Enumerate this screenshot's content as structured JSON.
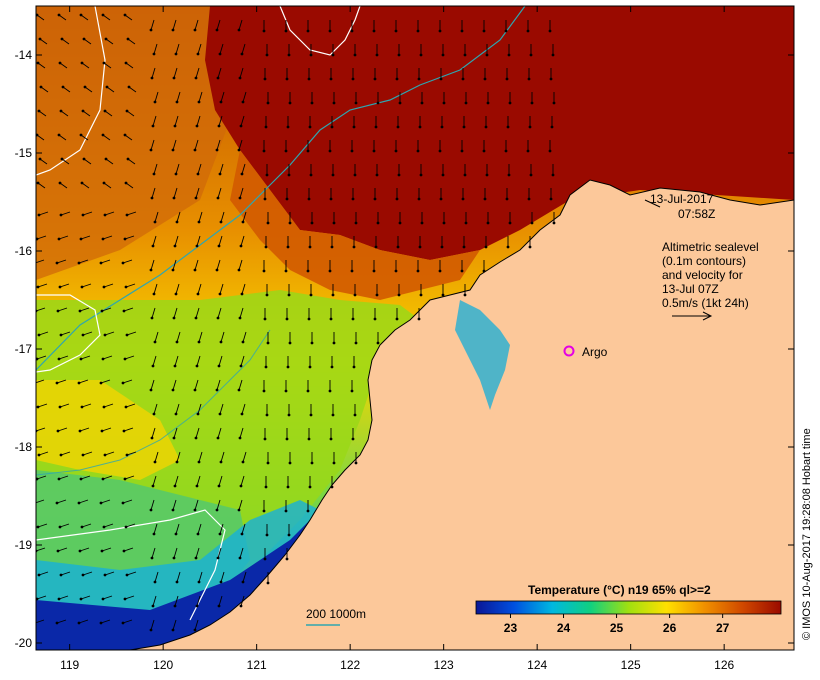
{
  "colors": {
    "land": "#fcc89a",
    "hot": "#9a0a00",
    "contour_white": "#ffffff",
    "isobath": "#2ea6b0",
    "argo_marker": "#e400e4"
  },
  "map": {
    "lon_ticks": [
      "119",
      "120",
      "121",
      "122",
      "123",
      "124",
      "125",
      "126"
    ],
    "lat_ticks": [
      "-14",
      "-15",
      "-16",
      "-17",
      "-18",
      "-19",
      "-20"
    ],
    "date_label_line1": "13-Jul-2017",
    "date_label_line2": "07:58Z",
    "alt_text": [
      "Altimetric sealevel",
      "(0.1m contours)",
      "and velocity for",
      "13-Jul 07Z",
      "0.5m/s (1kt 24h)"
    ],
    "argo_label": "Argo",
    "isobath_label": "200  1000m",
    "colorbar_title": "Temperature (°C) n19 65% ql>=2",
    "colorbar_ticks": [
      "23",
      "24",
      "25",
      "26",
      "27"
    ],
    "colorbar_stops": [
      "#0a1696",
      "#0050e0",
      "#00b8e0",
      "#10d080",
      "#a0e010",
      "#ffe000",
      "#f09000",
      "#d04800",
      "#9a0a00"
    ],
    "credit": "© IMOS 10-Aug-2017 19:28:08 Hobart time",
    "icons": [
      "argo-float-icon",
      "velocity-scale-arrow-icon"
    ]
  }
}
